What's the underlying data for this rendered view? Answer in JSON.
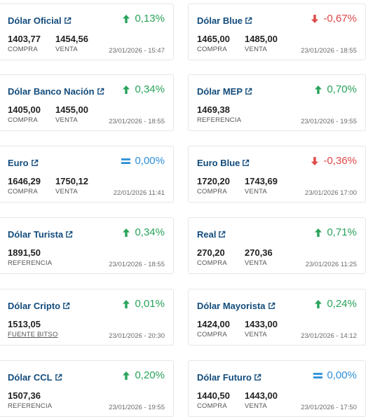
{
  "cards": [
    {
      "title": "Dólar Oficial",
      "change": "0,13%",
      "dir": "up",
      "v1": "1403,77",
      "l1": "COMPRA",
      "v2": "1454,56",
      "l2": "VENTA",
      "date": "23/01/2026 - 15:47"
    },
    {
      "title": "Dólar Blue",
      "change": "-0,67%",
      "dir": "down",
      "v1": "1465,00",
      "l1": "COMPRA",
      "v2": "1485,00",
      "l2": "VENTA",
      "date": "23/01/2026 - 18:55"
    },
    {
      "title": "Dólar Banco Nación",
      "change": "0,34%",
      "dir": "up",
      "v1": "1405,00",
      "l1": "COMPRA",
      "v2": "1455,00",
      "l2": "VENTA",
      "date": "23/01/2026 - 18:55"
    },
    {
      "title": "Dólar MEP",
      "change": "0,70%",
      "dir": "up",
      "v1": "1469,38",
      "l1": "REFERENCIA",
      "v2": null,
      "l2": null,
      "date": "23/01/2026 - 19:55"
    },
    {
      "title": "Euro",
      "change": "0,00%",
      "dir": "eq",
      "v1": "1646,29",
      "l1": "COMPRA",
      "v2": "1750,12",
      "l2": "VENTA",
      "date": "22/01/2026 11:41"
    },
    {
      "title": "Euro Blue",
      "change": "-0,36%",
      "dir": "down",
      "v1": "1720,20",
      "l1": "COMPRA",
      "v2": "1743,69",
      "l2": "VENTA",
      "date": "23/01/2026 17:00"
    },
    {
      "title": "Dólar Turista",
      "change": "0,34%",
      "dir": "up",
      "v1": "1891,50",
      "l1": "REFERENCIA",
      "v2": null,
      "l2": null,
      "date": "23/01/2026 - 18:55"
    },
    {
      "title": "Real",
      "change": "0,71%",
      "dir": "up",
      "v1": "270,20",
      "l1": "COMPRA",
      "v2": "270,36",
      "l2": "VENTA",
      "date": "23/01/2026 11:25"
    },
    {
      "title": "Dólar Cripto",
      "change": "0,01%",
      "dir": "up",
      "v1": "1513,05",
      "l1": "FUENTE BITSO",
      "v2": null,
      "l2": null,
      "date": "23/01/2026 - 20:30",
      "l1_underline": true
    },
    {
      "title": "Dólar Mayorista",
      "change": "0,24%",
      "dir": "up",
      "v1": "1424,00",
      "l1": "COMPRA",
      "v2": "1433,00",
      "l2": "VENTA",
      "date": "23/01/2026 - 14:12"
    },
    {
      "title": "Dólar CCL",
      "change": "0,20%",
      "dir": "up",
      "v1": "1507,36",
      "l1": "REFERENCIA",
      "v2": null,
      "l2": null,
      "date": "23/01/2026 - 19:55"
    },
    {
      "title": "Dólar Futuro",
      "change": "0,00%",
      "dir": "eq",
      "v1": "1440,50",
      "l1": "COMPRA",
      "v2": "1443,00",
      "l2": "VENTA",
      "date": "23/01/2026 - 17:50"
    }
  ],
  "colors": {
    "title": "#124b7c",
    "up": "#29a35a",
    "down": "#e04848",
    "eq": "#2c8fd8"
  },
  "icons": {
    "external": "external-link-icon",
    "up": "arrow-up-icon",
    "down": "arrow-down-icon",
    "eq": "equals-icon"
  }
}
